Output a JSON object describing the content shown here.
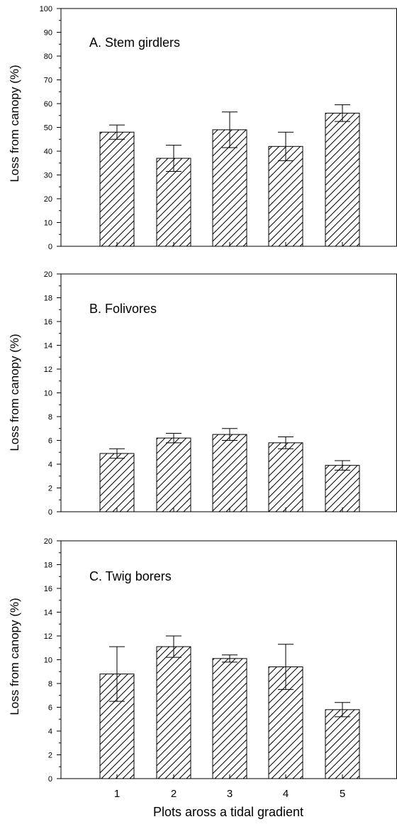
{
  "chart_data": [
    {
      "type": "bar",
      "title": "A. Stem girdlers",
      "ylabel": "Loss from canopy (%)",
      "categories": [
        "1",
        "2",
        "3",
        "4",
        "5"
      ],
      "values": [
        48,
        37,
        49,
        42,
        56
      ],
      "errors": [
        3,
        5.5,
        7.5,
        6,
        3.5
      ],
      "ylim": [
        0,
        100
      ],
      "yticks": [
        0,
        10,
        20,
        30,
        40,
        50,
        60,
        70,
        80,
        90,
        100
      ],
      "bar_fill": "diagonal-hatch"
    },
    {
      "type": "bar",
      "title": "B. Folivores",
      "ylabel": "Loss from canopy (%)",
      "categories": [
        "1",
        "2",
        "3",
        "4",
        "5"
      ],
      "values": [
        4.9,
        6.2,
        6.5,
        5.8,
        3.9
      ],
      "errors": [
        0.4,
        0.4,
        0.5,
        0.5,
        0.4
      ],
      "ylim": [
        0,
        20
      ],
      "yticks": [
        0,
        2,
        4,
        6,
        8,
        10,
        12,
        14,
        16,
        18,
        20
      ],
      "bar_fill": "diagonal-hatch"
    },
    {
      "type": "bar",
      "title": "C. Twig borers",
      "ylabel": "Loss from canopy (%)",
      "categories": [
        "1",
        "2",
        "3",
        "4",
        "5"
      ],
      "values": [
        8.8,
        11.1,
        10.1,
        9.4,
        5.8
      ],
      "errors": [
        2.3,
        0.9,
        0.3,
        1.9,
        0.6
      ],
      "ylim": [
        0,
        20
      ],
      "yticks": [
        0,
        2,
        4,
        6,
        8,
        10,
        12,
        14,
        16,
        18,
        20
      ],
      "bar_fill": "diagonal-hatch"
    }
  ],
  "xlabel": "Plots aross a tidal gradient",
  "colors": {
    "ink": "#000000",
    "background": "#ffffff"
  }
}
